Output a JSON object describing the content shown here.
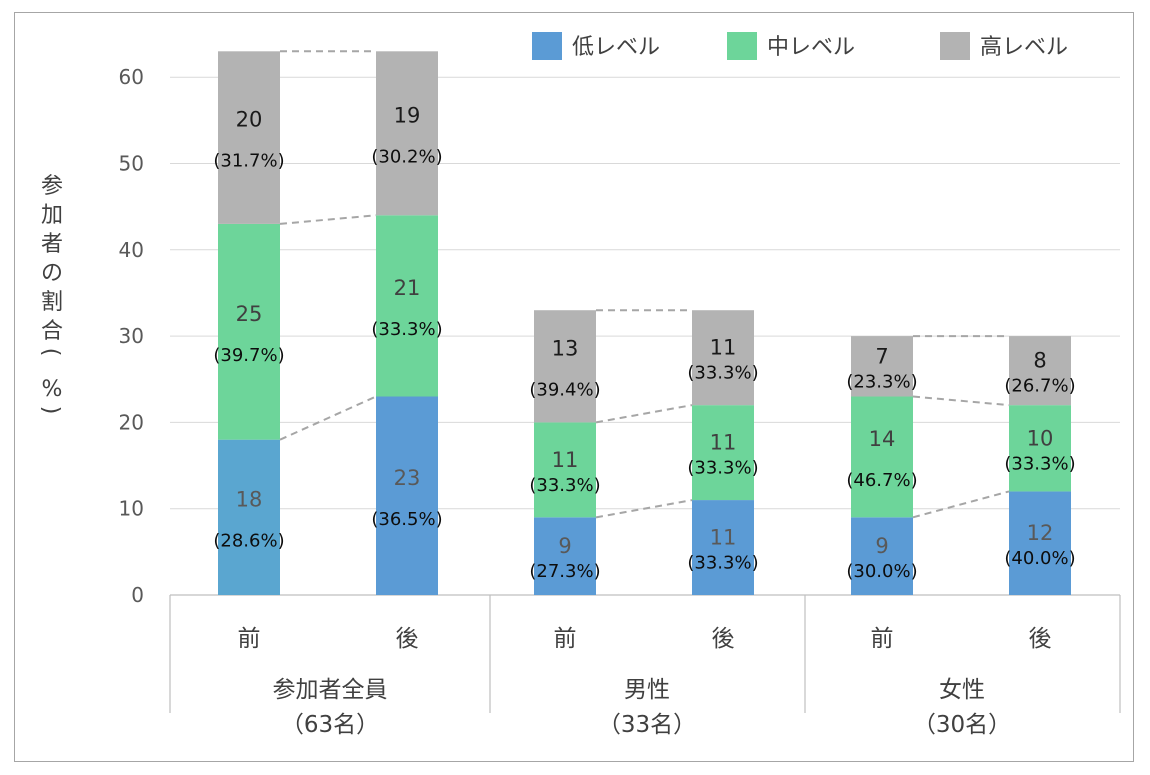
{
  "chart_data": {
    "type": "bar",
    "stacked": true,
    "categories": [
      "前",
      "後",
      "前",
      "後",
      "前",
      "後"
    ],
    "groups": [
      {
        "name": "参加者全員",
        "size": "（63名）"
      },
      {
        "name": "男性",
        "size": "（33名）"
      },
      {
        "name": "女性",
        "size": "（30名）"
      }
    ],
    "series": [
      {
        "name": "低レベル",
        "color": "#5b9bd5",
        "values": [
          18,
          23,
          9,
          11,
          9,
          12
        ],
        "labels": [
          "(28.6%)",
          "(36.5%)",
          "(27.3%)",
          "(33.3%)",
          "(30.0%)",
          "(40.0%)"
        ]
      },
      {
        "name": "中レベル",
        "color": "#6dd59a",
        "values": [
          25,
          21,
          11,
          11,
          14,
          10
        ],
        "labels": [
          "(39.7%)",
          "(33.3%)",
          "(33.3%)",
          "(33.3%)",
          "(46.7%)",
          "(33.3%)"
        ]
      },
      {
        "name": "高レベル",
        "color": "#b3b3b3",
        "values": [
          20,
          19,
          13,
          11,
          7,
          8
        ],
        "labels": [
          "(31.7%)",
          "(30.2%)",
          "(39.4%)",
          "(33.3%)",
          "(23.3%)",
          "(26.7%)"
        ]
      }
    ],
    "ylabel": "参加者の割合（%）",
    "xlabel": "",
    "ylim": [
      0,
      60
    ],
    "yticks": [
      0,
      10,
      20,
      30,
      40,
      50,
      60
    ],
    "grid": true,
    "legend_position": "top-right",
    "connector_lines": "dashed"
  }
}
